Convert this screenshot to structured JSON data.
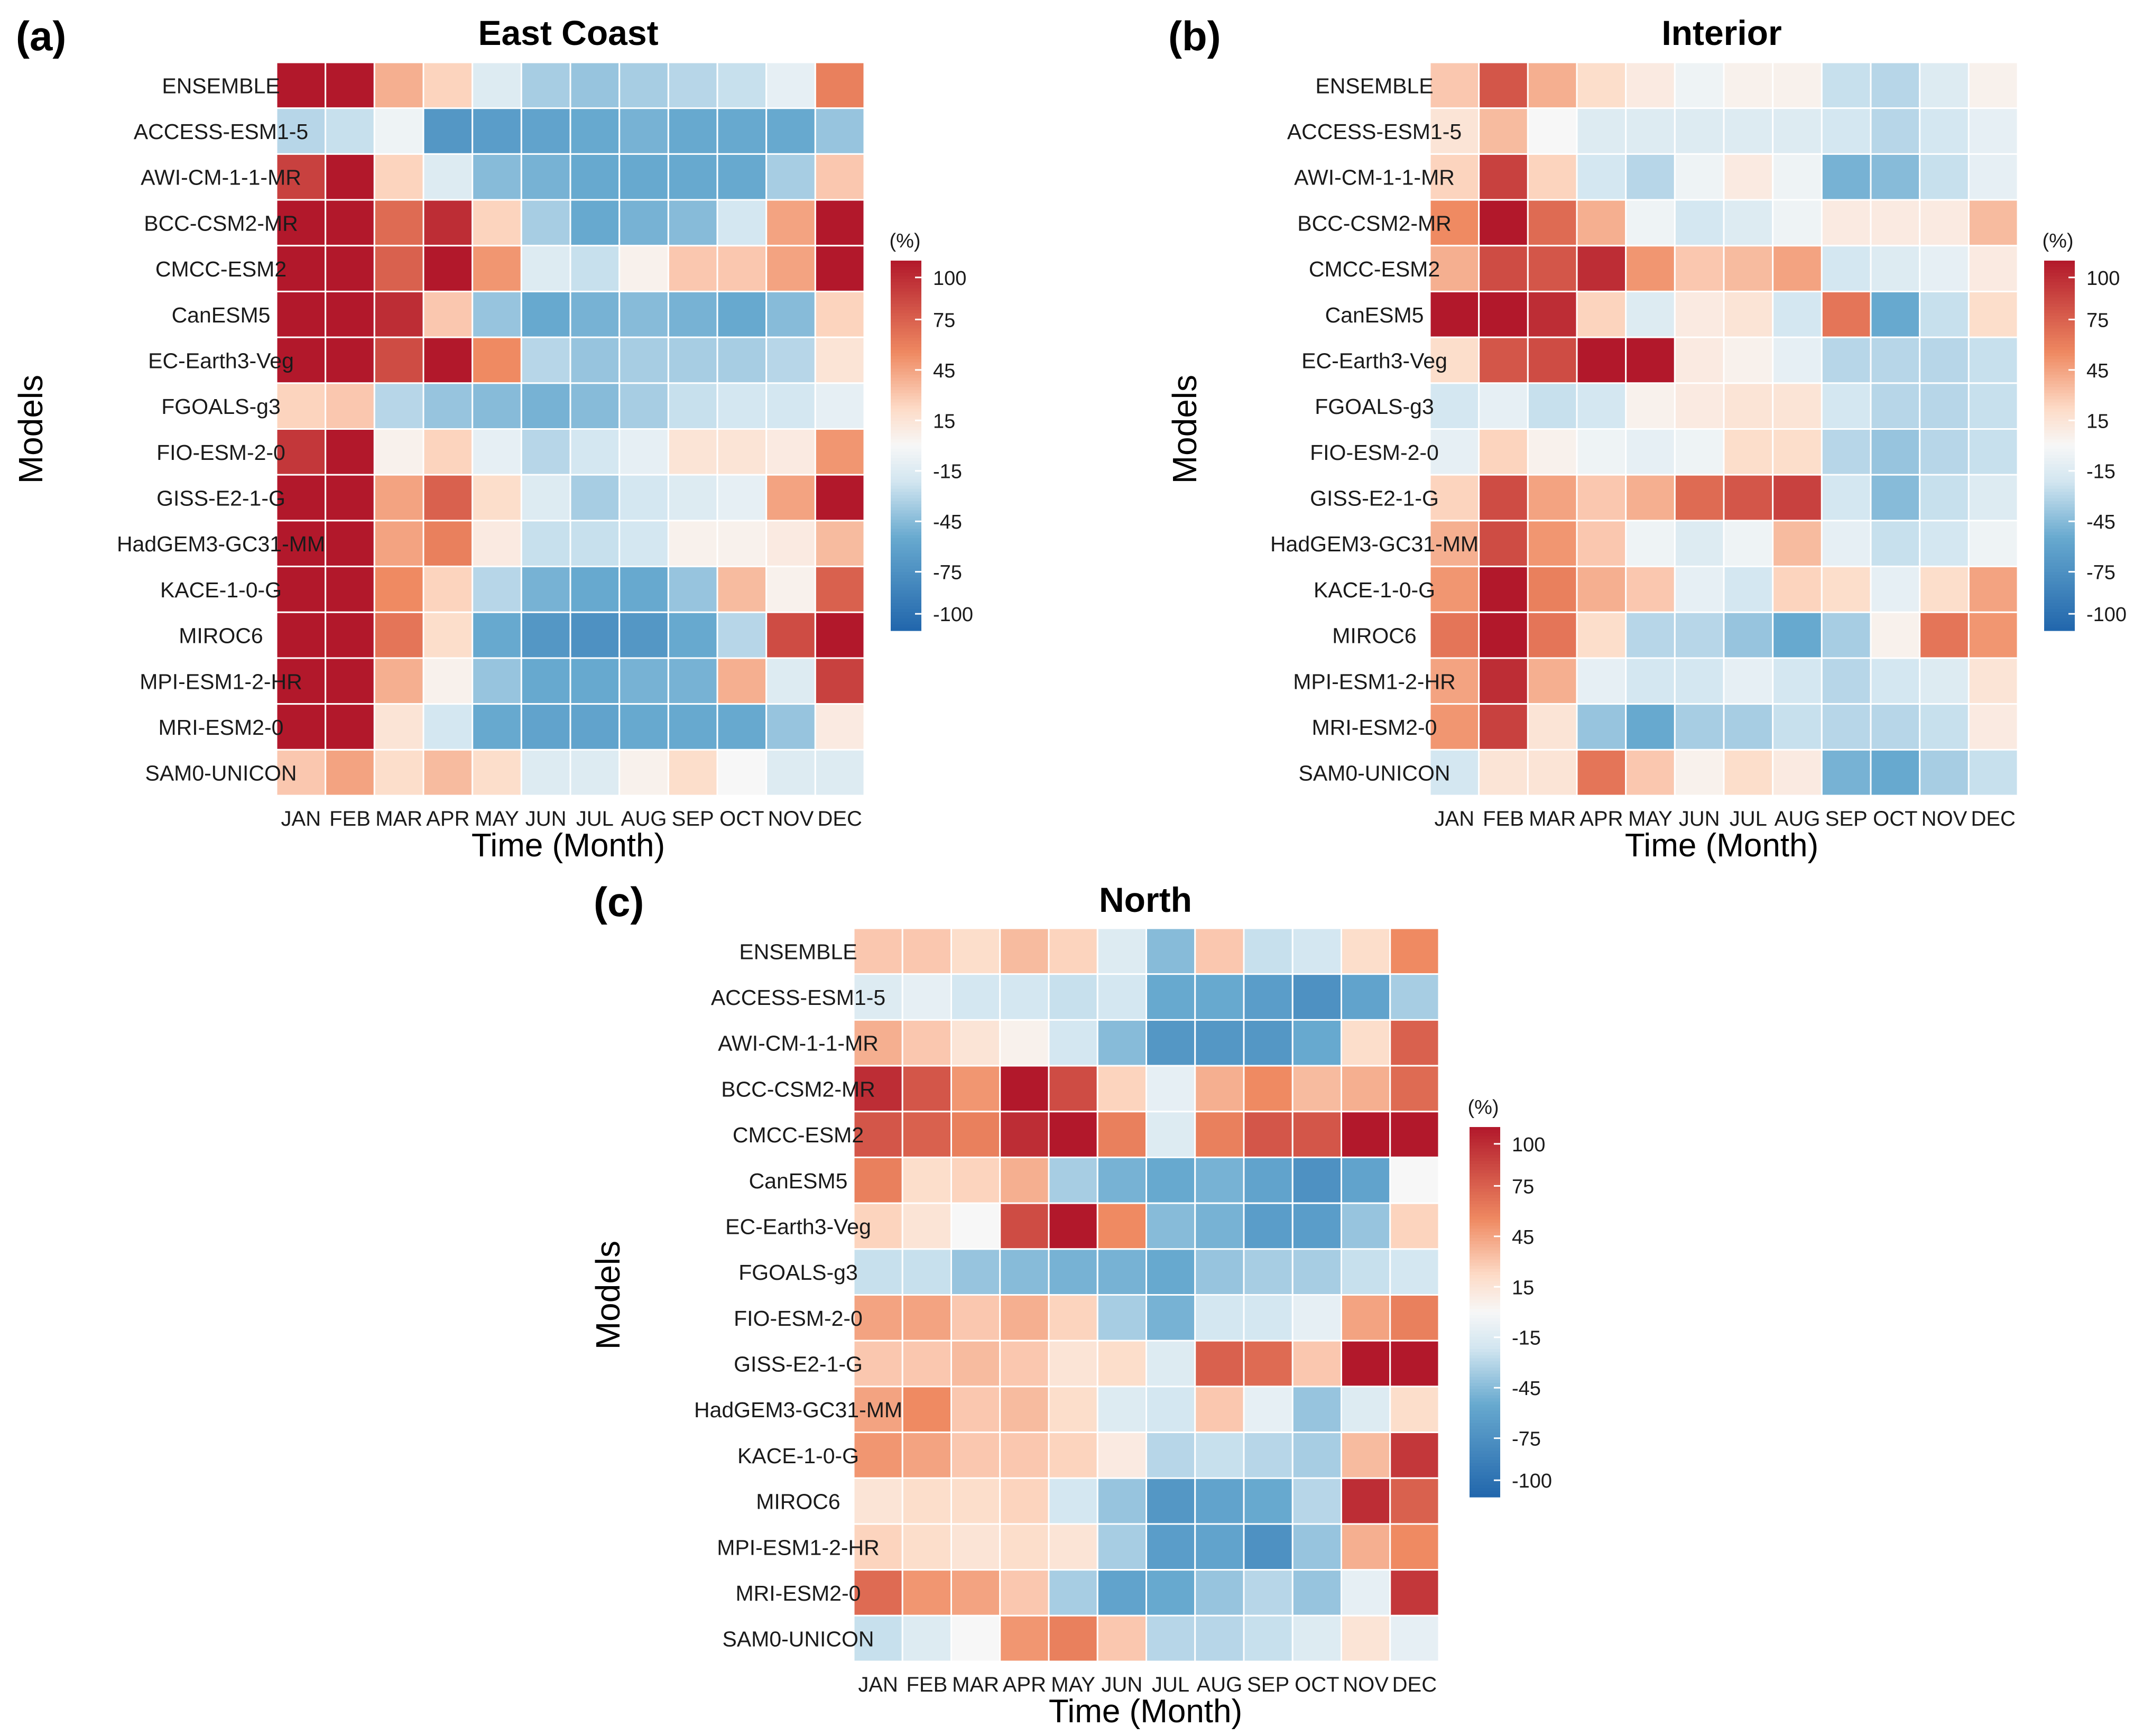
{
  "colorbar": {
    "unit_label": "(%)",
    "ticks": [
      "100",
      "75",
      "45",
      "15",
      "-15",
      "-45",
      "-75",
      "-100"
    ],
    "tick_values": [
      100,
      75,
      45,
      15,
      -15,
      -45,
      -75,
      -100
    ],
    "range": [
      -110,
      110
    ],
    "colors": {
      "low": "#2166ac",
      "mid": "#f7f7f7",
      "high": "#b2182b"
    }
  },
  "chart_data": [
    {
      "type": "heatmap",
      "panel_label": "(a)",
      "title": "East Coast",
      "xlabel": "Time (Month)",
      "ylabel": "Models",
      "x_categories": [
        "JAN",
        "FEB",
        "MAR",
        "APR",
        "MAY",
        "JUN",
        "JUL",
        "AUG",
        "SEP",
        "OCT",
        "NOV",
        "DEC"
      ],
      "y_categories": [
        "ENSEMBLE",
        "ACCESS-ESM1-5",
        "AWI-CM-1-1-MR",
        "BCC-CSM2-MR",
        "CMCC-ESM2",
        "CanESM5",
        "EC-Earth3-Veg",
        "FGOALS-g3",
        "FIO-ESM-2-0",
        "GISS-E2-1-G",
        "HadGEM3-GC31-MM",
        "KACE-1-0-G",
        "MIROC6",
        "MPI-ESM1-2-HR",
        "MRI-ESM2-0",
        "SAM0-UNICON"
      ],
      "values": [
        [
          110,
          110,
          40,
          25,
          -15,
          -35,
          -40,
          -35,
          -30,
          -25,
          -10,
          60
        ],
        [
          -30,
          -25,
          -5,
          -70,
          -65,
          -60,
          -55,
          -50,
          -55,
          -55,
          -55,
          -40
        ],
        [
          90,
          110,
          25,
          -15,
          -45,
          -50,
          -55,
          -55,
          -55,
          -55,
          -35,
          30
        ],
        [
          110,
          110,
          70,
          100,
          25,
          -35,
          -55,
          -50,
          -45,
          -20,
          45,
          110
        ],
        [
          110,
          110,
          75,
          110,
          50,
          -15,
          -25,
          5,
          30,
          30,
          45,
          110
        ],
        [
          110,
          110,
          100,
          30,
          -40,
          -55,
          -50,
          -45,
          -50,
          -55,
          -45,
          25
        ],
        [
          110,
          110,
          85,
          110,
          55,
          -30,
          -40,
          -35,
          -35,
          -35,
          -30,
          15
        ],
        [
          25,
          30,
          -30,
          -40,
          -45,
          -50,
          -45,
          -35,
          -25,
          -20,
          -20,
          -10
        ],
        [
          95,
          110,
          5,
          25,
          -10,
          -30,
          -20,
          -10,
          15,
          15,
          10,
          50
        ],
        [
          110,
          110,
          45,
          75,
          20,
          -15,
          -35,
          -20,
          -15,
          -10,
          45,
          110
        ],
        [
          110,
          110,
          45,
          60,
          10,
          -25,
          -25,
          -20,
          5,
          5,
          10,
          35
        ],
        [
          110,
          110,
          55,
          25,
          -30,
          -50,
          -55,
          -55,
          -40,
          35,
          5,
          75
        ],
        [
          110,
          110,
          65,
          20,
          -55,
          -70,
          -75,
          -70,
          -55,
          -30,
          85,
          110
        ],
        [
          110,
          110,
          40,
          5,
          -40,
          -55,
          -55,
          -50,
          -50,
          40,
          -15,
          90
        ],
        [
          110,
          110,
          15,
          -20,
          -55,
          -60,
          -60,
          -55,
          -55,
          -55,
          -40,
          10
        ],
        [
          30,
          45,
          20,
          35,
          20,
          -15,
          -15,
          5,
          20,
          0,
          -15,
          -15
        ]
      ]
    },
    {
      "type": "heatmap",
      "panel_label": "(b)",
      "title": "Interior",
      "xlabel": "Time (Month)",
      "ylabel": "Models",
      "x_categories": [
        "JAN",
        "FEB",
        "MAR",
        "APR",
        "MAY",
        "JUN",
        "JUL",
        "AUG",
        "SEP",
        "OCT",
        "NOV",
        "DEC"
      ],
      "y_categories": [
        "ENSEMBLE",
        "ACCESS-ESM1-5",
        "AWI-CM-1-1-MR",
        "BCC-CSM2-MR",
        "CMCC-ESM2",
        "CanESM5",
        "EC-Earth3-Veg",
        "FGOALS-g3",
        "FIO-ESM-2-0",
        "GISS-E2-1-G",
        "HadGEM3-GC31-MM",
        "KACE-1-0-G",
        "MIROC6",
        "MPI-ESM1-2-HR",
        "MRI-ESM2-0",
        "SAM0-UNICON"
      ],
      "values": [
        [
          30,
          80,
          40,
          20,
          10,
          -5,
          5,
          5,
          -25,
          -30,
          -15,
          5
        ],
        [
          15,
          35,
          0,
          -15,
          -15,
          -15,
          -15,
          -15,
          -20,
          -30,
          -20,
          -10
        ],
        [
          25,
          90,
          25,
          -20,
          -30,
          -5,
          10,
          -5,
          -50,
          -45,
          -25,
          -10
        ],
        [
          55,
          110,
          70,
          40,
          -5,
          -20,
          -15,
          -5,
          10,
          10,
          10,
          35
        ],
        [
          40,
          85,
          80,
          100,
          50,
          30,
          35,
          45,
          -20,
          -15,
          -10,
          10
        ],
        [
          110,
          110,
          100,
          25,
          -15,
          10,
          15,
          -20,
          65,
          -55,
          -25,
          20
        ],
        [
          20,
          80,
          85,
          110,
          110,
          10,
          5,
          -10,
          -30,
          -30,
          -30,
          -25
        ],
        [
          -20,
          -10,
          -25,
          -20,
          5,
          10,
          15,
          15,
          -20,
          -30,
          -30,
          -25
        ],
        [
          -10,
          25,
          5,
          -5,
          -10,
          -5,
          20,
          20,
          -30,
          -40,
          -30,
          -25
        ],
        [
          25,
          85,
          45,
          30,
          40,
          70,
          80,
          90,
          -20,
          -45,
          -25,
          -15
        ],
        [
          40,
          85,
          50,
          30,
          -5,
          -15,
          -5,
          35,
          -10,
          -25,
          -20,
          -5
        ],
        [
          50,
          110,
          60,
          40,
          30,
          -10,
          -20,
          25,
          20,
          -10,
          20,
          45
        ],
        [
          65,
          110,
          65,
          20,
          -30,
          -30,
          -40,
          -55,
          -35,
          5,
          65,
          50
        ],
        [
          45,
          100,
          40,
          -10,
          -20,
          -20,
          -10,
          -20,
          -30,
          -20,
          -15,
          15
        ],
        [
          50,
          90,
          15,
          -40,
          -55,
          -35,
          -35,
          -25,
          -30,
          -30,
          -25,
          10
        ],
        [
          -20,
          15,
          15,
          65,
          30,
          5,
          20,
          10,
          -50,
          -55,
          -35,
          -25
        ]
      ]
    },
    {
      "type": "heatmap",
      "panel_label": "(c)",
      "title": "North",
      "xlabel": "Time (Month)",
      "ylabel": "Models",
      "x_categories": [
        "JAN",
        "FEB",
        "MAR",
        "APR",
        "MAY",
        "JUN",
        "JUL",
        "AUG",
        "SEP",
        "OCT",
        "NOV",
        "DEC"
      ],
      "y_categories": [
        "ENSEMBLE",
        "ACCESS-ESM1-5",
        "AWI-CM-1-1-MR",
        "BCC-CSM2-MR",
        "CMCC-ESM2",
        "CanESM5",
        "EC-Earth3-Veg",
        "FGOALS-g3",
        "FIO-ESM-2-0",
        "GISS-E2-1-G",
        "HadGEM3-GC31-MM",
        "KACE-1-0-G",
        "MIROC6",
        "MPI-ESM1-2-HR",
        "MRI-ESM2-0",
        "SAM0-UNICON"
      ],
      "values": [
        [
          30,
          30,
          20,
          35,
          25,
          -15,
          -45,
          30,
          -25,
          -20,
          20,
          55
        ],
        [
          -15,
          -10,
          -20,
          -20,
          -25,
          -20,
          -55,
          -55,
          -65,
          -75,
          -60,
          -35
        ],
        [
          40,
          30,
          15,
          5,
          -20,
          -45,
          -70,
          -70,
          -70,
          -55,
          20,
          75
        ],
        [
          100,
          80,
          50,
          110,
          85,
          25,
          -10,
          40,
          55,
          35,
          40,
          70
        ],
        [
          80,
          75,
          60,
          100,
          110,
          60,
          -15,
          60,
          80,
          80,
          110,
          110
        ],
        [
          60,
          20,
          25,
          40,
          -35,
          -50,
          -55,
          -50,
          -60,
          -75,
          -60,
          0
        ],
        [
          25,
          15,
          0,
          85,
          110,
          55,
          -45,
          -50,
          -65,
          -65,
          -40,
          25
        ],
        [
          -25,
          -25,
          -40,
          -45,
          -50,
          -50,
          -55,
          -40,
          -35,
          -35,
          -25,
          -20
        ],
        [
          45,
          45,
          30,
          40,
          25,
          -35,
          -50,
          -20,
          -20,
          -10,
          45,
          60
        ],
        [
          30,
          30,
          35,
          30,
          15,
          20,
          -15,
          75,
          70,
          30,
          110,
          110
        ],
        [
          45,
          55,
          30,
          35,
          20,
          -15,
          -20,
          30,
          -10,
          -40,
          -15,
          20
        ],
        [
          50,
          45,
          30,
          30,
          25,
          10,
          -30,
          -25,
          -30,
          -35,
          35,
          95
        ],
        [
          15,
          20,
          20,
          25,
          -20,
          -40,
          -70,
          -60,
          -55,
          -30,
          100,
          75
        ],
        [
          25,
          20,
          15,
          20,
          15,
          -35,
          -65,
          -60,
          -75,
          -40,
          40,
          55
        ],
        [
          70,
          50,
          45,
          30,
          -35,
          -60,
          -55,
          -40,
          -30,
          -40,
          -10,
          95
        ],
        [
          -25,
          -15,
          0,
          50,
          60,
          30,
          -30,
          -30,
          -25,
          -15,
          15,
          -10
        ]
      ]
    }
  ]
}
